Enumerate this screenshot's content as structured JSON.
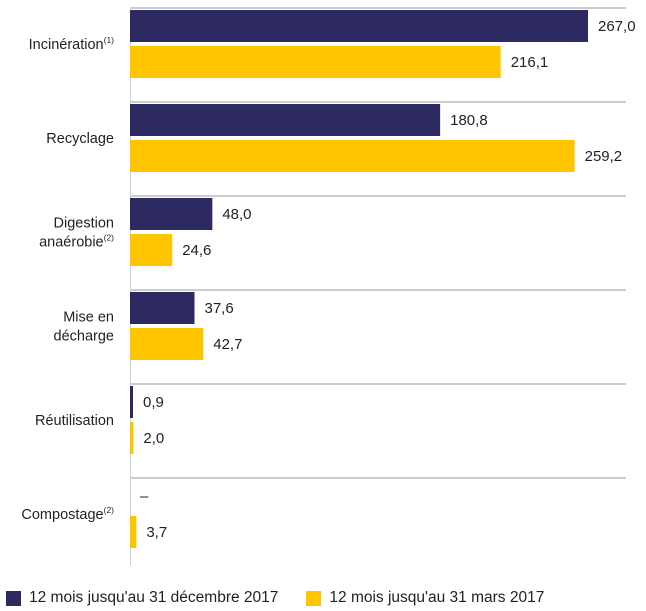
{
  "chart_data": {
    "type": "bar",
    "orientation": "horizontal",
    "categories": [
      {
        "lines": [
          "Incinération"
        ],
        "sup": "(1)"
      },
      {
        "lines": [
          "Recyclage"
        ],
        "sup": ""
      },
      {
        "lines": [
          "Digestion",
          "anaérobie"
        ],
        "sup": "(2)"
      },
      {
        "lines": [
          "Mise en",
          "décharge"
        ],
        "sup": ""
      },
      {
        "lines": [
          "Réutilisation"
        ],
        "sup": ""
      },
      {
        "lines": [
          "Compostage"
        ],
        "sup": "(2)"
      }
    ],
    "series": [
      {
        "name": "12 mois jusqu'au 31 décembre 2017",
        "color": "#2d2a62",
        "values": [
          267.0,
          180.8,
          48.0,
          37.6,
          0.9,
          null
        ],
        "labels": [
          "267,0",
          "180,8",
          "48,0",
          "37,6",
          "0,9",
          "–"
        ]
      },
      {
        "name": "12 mois jusqu'au 31 mars 2017",
        "color": "#ffc600",
        "values": [
          216.1,
          259.2,
          24.6,
          42.7,
          2.0,
          3.7
        ],
        "labels": [
          "216,1",
          "259,2",
          "24,6",
          "42,7",
          "2,0",
          "3,7"
        ]
      }
    ],
    "xlim": [
      0,
      267.0
    ],
    "grid": "horizontal separators between categories",
    "legend_position": "bottom"
  }
}
